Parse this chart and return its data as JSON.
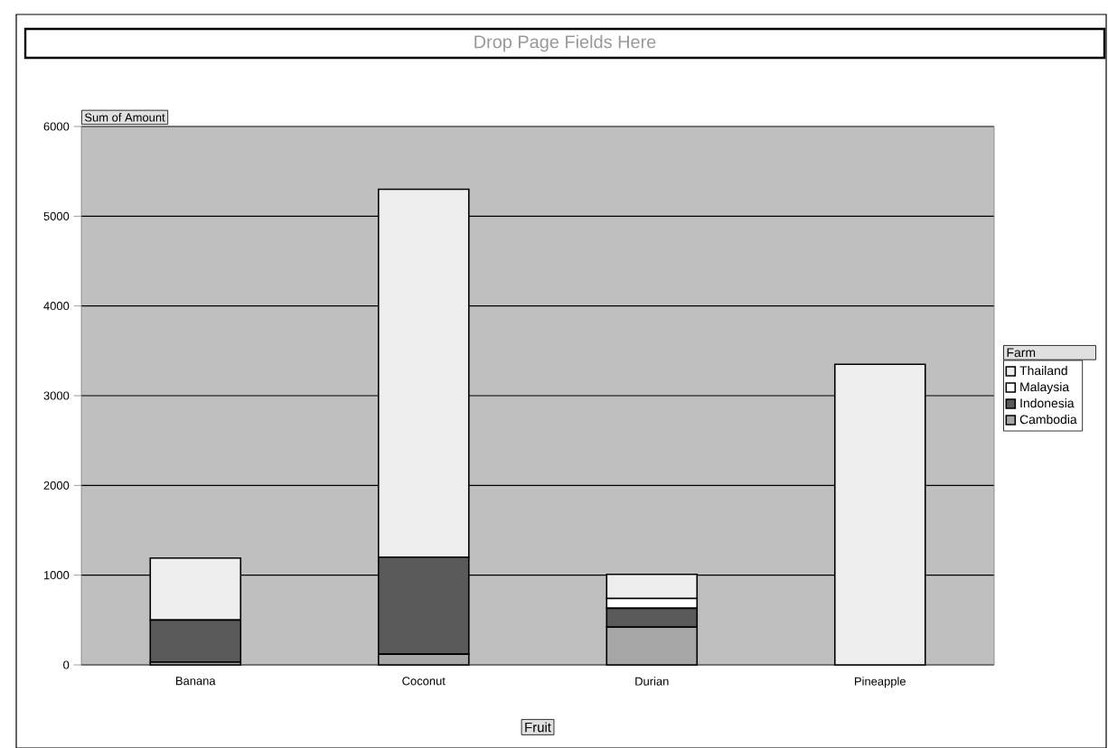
{
  "chart_data": {
    "type": "bar",
    "stacked": true,
    "categories": [
      "Banana",
      "Coconut",
      "Durian",
      "Pineapple"
    ],
    "series": [
      {
        "name": "Cambodia",
        "color": "#a6a6a6",
        "values": [
          30,
          120,
          420,
          0
        ]
      },
      {
        "name": "Indonesia",
        "color": "#5a5a5a",
        "values": [
          470,
          1080,
          210,
          0
        ]
      },
      {
        "name": "Malaysia",
        "color": "#ffffff",
        "values": [
          0,
          0,
          110,
          0
        ]
      },
      {
        "name": "Thailand",
        "color": "#eeeeee",
        "values": [
          690,
          4100,
          270,
          3350
        ]
      }
    ],
    "ylim": [
      0,
      6000
    ],
    "yticks": [
      0,
      1000,
      2000,
      3000,
      4000,
      5000,
      6000
    ],
    "grid": "y",
    "legend": "right",
    "legend_title": "Farm",
    "xlabel": "Fruit",
    "ylabel": "Sum of Amount",
    "annotations": [
      "Drop Page Fields Here"
    ]
  }
}
